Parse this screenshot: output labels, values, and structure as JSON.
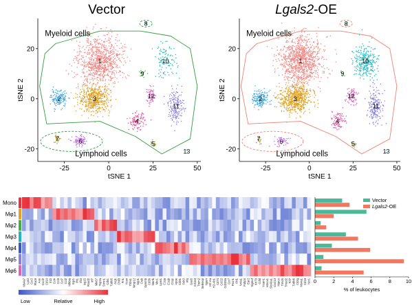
{
  "panels": {
    "vector": {
      "title": "Vector"
    },
    "oe": {
      "title_italic": "Lgals2",
      "title_rest": "-OE"
    }
  },
  "tsne": {
    "xlabel": "tSNE 1",
    "ylabel": "tSNE 2",
    "xticks": [
      "-25",
      "0",
      "25",
      "50"
    ],
    "yticks": [
      "20",
      "0",
      "-20"
    ],
    "xlim": [
      -40,
      52
    ],
    "ylim": [
      -25,
      32
    ],
    "myeloid_label": "Myeloid cells",
    "lymphoid_label": "Lymphoid cells",
    "colors": {
      "myeloid_outline": "#2e9e3e",
      "myeloid_outline_oe": "#f08070"
    },
    "clusters": [
      {
        "id": "1",
        "color": "#f08a86",
        "cx": -5,
        "cy": 15,
        "sx": 11,
        "sy": 9,
        "n": 900,
        "n_oe": 1100
      },
      {
        "id": "2",
        "color": "#3aa7e0",
        "cx": -28,
        "cy": 0,
        "sx": 4,
        "sy": 3,
        "n": 140,
        "n_oe": 170
      },
      {
        "id": "3",
        "color": "#e0a020",
        "cx": -8,
        "cy": 0,
        "sx": 8,
        "sy": 5,
        "n": 520,
        "n_oe": 620
      },
      {
        "id": "4",
        "color": "#e8509a",
        "cx": 16,
        "cy": -9,
        "sx": 4,
        "sy": 3,
        "n": 110,
        "n_oe": 90
      },
      {
        "id": "5",
        "color": "#8a9a20",
        "cx": 25,
        "cy": -18,
        "sx": 1.5,
        "sy": 1,
        "n": 15,
        "n_oe": 12
      },
      {
        "id": "6",
        "color": "#c070e0",
        "cx": -16,
        "cy": -17,
        "sx": 4,
        "sy": 2,
        "n": 90,
        "n_oe": 50
      },
      {
        "id": "7",
        "color": "#9a8a20",
        "cx": -29,
        "cy": -16,
        "sx": 1.5,
        "sy": 1.5,
        "n": 25,
        "n_oe": 15
      },
      {
        "id": "8",
        "color": "#60c090",
        "cx": 21,
        "cy": 30,
        "sx": 1,
        "sy": 0.8,
        "n": 8,
        "n_oe": 6
      },
      {
        "id": "9",
        "color": "#40b040",
        "cx": 19,
        "cy": 10,
        "sx": 1.5,
        "sy": 1.5,
        "n": 15,
        "n_oe": 6
      },
      {
        "id": "10",
        "color": "#20b8c0",
        "cx": 32,
        "cy": 15,
        "sx": 6,
        "sy": 6,
        "n": 110,
        "n_oe": 280
      },
      {
        "id": "11",
        "color": "#8a80e0",
        "cx": 38,
        "cy": -3,
        "sx": 4,
        "sy": 6,
        "n": 180,
        "n_oe": 200
      },
      {
        "id": "12",
        "color": "#e060c0",
        "cx": 24,
        "cy": 1,
        "sx": 2.5,
        "sy": 3,
        "n": 70,
        "n_oe": 80
      },
      {
        "id": "13",
        "color": "#80c0d0",
        "cx": 44,
        "cy": -21,
        "sx": 1,
        "sy": 0.8,
        "n": 5,
        "n_oe": 5
      }
    ]
  },
  "heatmap": {
    "rows": [
      "Mono",
      "Mφ1",
      "Mφ2",
      "Mφ3",
      "Mφ4",
      "Mφ5",
      "Mφ6"
    ],
    "genes": [
      "Ms4a7",
      "Lyz2",
      "Ccr2",
      "Plac8",
      "Ace",
      "Cxcl2",
      "Cd14",
      "Il1b",
      "Ccl4",
      "Ccl3",
      "Ccl7",
      "Ccl2",
      "Nfkbia",
      "Egr1",
      "Ifit1",
      "Ifit3",
      "Isg15",
      "Rsad2",
      "Irf7",
      "Mki67",
      "Top2a",
      "Stmn1",
      "Cdk1",
      "Tubb5",
      "Arg1",
      "Chil3",
      "Fn1",
      "Vcan",
      "Thbs1",
      "Mmp12",
      "Spp1",
      "Ctsk",
      "Gpnmb",
      "Cd36",
      "Mertk",
      "Mrc1",
      "Lyve1",
      "C1qa",
      "C1qb",
      "C1qc",
      "Apoe",
      "Cd81",
      "Folr2",
      "Pf4",
      "Gas6",
      "Cd163",
      "Trem2",
      "Selenop",
      "Itgam",
      "H2-Aa",
      "H2-Ab1",
      "Cd74",
      "Ccl22",
      "Cd209a",
      "Ccr7",
      "Fscn1",
      "Il4i1",
      "Nr4a1",
      "Fabp4",
      "Ear2",
      "Siglecf",
      "Krt79",
      "Cd5l",
      "Vcam1",
      "Hmox1",
      "Slc40a1",
      "Cxcl13",
      "Marco",
      "Timd4",
      "Tmod2",
      "Tcf7",
      "Tubb6",
      "Cd3g",
      "Ms4a1",
      "Cd19",
      "Ncr1"
    ],
    "legend": {
      "low": "Low",
      "mid": "Relative",
      "high": "High"
    },
    "colors": {
      "low": "#3a56c8",
      "mid": "#ffffff",
      "high": "#e8323c"
    }
  },
  "chart_data": {
    "type": "bar",
    "orientation": "horizontal",
    "categories": [
      "Mono",
      "Mφ1",
      "Mφ2",
      "Mφ3",
      "Mφ4",
      "Mφ5",
      "Mφ6"
    ],
    "series": [
      {
        "name": "Vector",
        "color": "#4cb89a",
        "values": [
          2.9,
          5.5,
          0.6,
          3.3,
          1.8,
          0.9,
          0.7
        ]
      },
      {
        "name_italic": "Lgals2",
        "name_rest": "-OE",
        "color": "#f07860",
        "values": [
          3.7,
          2.0,
          1.2,
          4.6,
          5.9,
          9.5,
          5.2
        ]
      }
    ],
    "xlabel": "% of leukocytes",
    "xticks": [
      "0",
      "2",
      "4",
      "6",
      "8",
      "10"
    ],
    "xlim": [
      0,
      10
    ]
  }
}
